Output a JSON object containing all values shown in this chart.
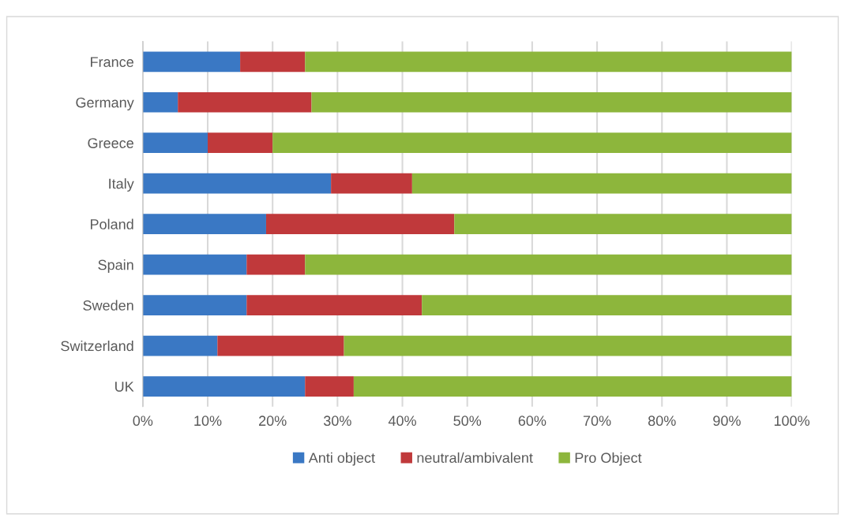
{
  "chart_data": {
    "type": "bar",
    "orientation": "horizontal",
    "stacked": true,
    "categories": [
      "France",
      "Germany",
      "Greece",
      "Italy",
      "Poland",
      "Spain",
      "Sweden",
      "Switzerland",
      "UK"
    ],
    "series": [
      {
        "name": "Anti object",
        "color": "#3a78c4",
        "values": [
          15,
          5.4,
          10,
          29,
          19,
          16,
          16,
          11.5,
          25
        ]
      },
      {
        "name": "neutral/ambivalent",
        "color": "#c0393b",
        "values": [
          10,
          20.6,
          10,
          12.5,
          29,
          9,
          27,
          19.5,
          7.5
        ]
      },
      {
        "name": "Pro Object",
        "color": "#8db63c",
        "values": [
          75,
          74,
          80,
          58.5,
          52,
          75,
          57,
          69,
          67.5
        ]
      }
    ],
    "xlim": [
      0,
      100
    ],
    "xticks": [
      {
        "value": 0,
        "label": "0%"
      },
      {
        "value": 10,
        "label": "10%"
      },
      {
        "value": 20,
        "label": "20%"
      },
      {
        "value": 30,
        "label": "30%"
      },
      {
        "value": 40,
        "label": "40%"
      },
      {
        "value": 50,
        "label": "50%"
      },
      {
        "value": 60,
        "label": "60%"
      },
      {
        "value": 70,
        "label": "70%"
      },
      {
        "value": 80,
        "label": "80%"
      },
      {
        "value": 90,
        "label": "90%"
      },
      {
        "value": 100,
        "label": "100%"
      }
    ],
    "grid": "x",
    "legend": "bottom"
  }
}
